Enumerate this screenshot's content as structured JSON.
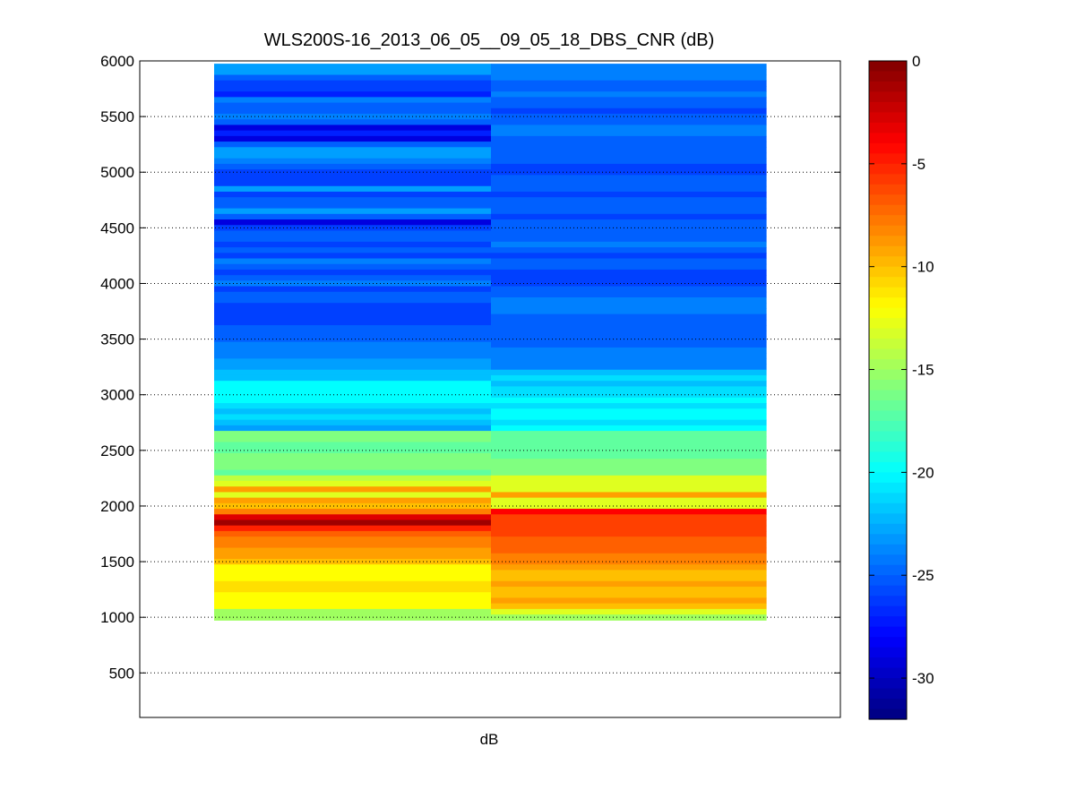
{
  "chart_data": {
    "type": "heatmap",
    "title": "WLS200S-16_2013_06_05__09_05_18_DBS_CNR (dB)",
    "xlabel": "dB",
    "ylabel": "",
    "ylim": [
      100,
      6000
    ],
    "yticks": [
      500,
      1000,
      1500,
      2000,
      2500,
      3000,
      3500,
      4000,
      4500,
      5000,
      5500,
      6000
    ],
    "grid": "horizontal dotted",
    "colorbar": {
      "colormap": "jet",
      "clim": [
        -32,
        0
      ],
      "ticks": [
        0,
        -5,
        -10,
        -15,
        -20,
        -25,
        -30
      ]
    },
    "row_step": 50,
    "rows_from_top_y": 5950,
    "columns": [
      {
        "values": [
          -23,
          -23,
          -25,
          -26,
          -26,
          -27,
          -24,
          -25,
          -25,
          -24,
          -25,
          -29,
          -27,
          -29,
          -25,
          -23,
          -23,
          -24,
          -25,
          -26,
          -26,
          -26,
          -23,
          -26,
          -25,
          -25,
          -23,
          -25,
          -29,
          -26,
          -25,
          -25,
          -26,
          -25,
          -26,
          -24,
          -25,
          -26,
          -25,
          -24,
          -26,
          -25,
          -25,
          -26,
          -26,
          -26,
          -26,
          -25,
          -25,
          -25,
          -24,
          -24,
          -24,
          -23,
          -23,
          -22,
          -22,
          -20,
          -20,
          -20,
          -20,
          -21,
          -22,
          -21,
          -22,
          -23,
          -16,
          -16,
          -17,
          -17,
          -16,
          -16,
          -16,
          -17,
          -14,
          -13,
          -9,
          -13,
          -9,
          -10,
          -8,
          -3,
          -1,
          -5,
          -7,
          -8,
          -8,
          -9,
          -9,
          -10,
          -12,
          -12,
          -12,
          -11,
          -11,
          -12,
          -12,
          -12,
          -15,
          -15
        ]
      },
      {
        "values": [
          -24,
          -24,
          -24,
          -25,
          -25,
          -24,
          -25,
          -25,
          -26,
          -25,
          -25,
          -24,
          -24,
          -25,
          -25,
          -25,
          -25,
          -25,
          -26,
          -26,
          -25,
          -25,
          -25,
          -26,
          -25,
          -25,
          -25,
          -26,
          -25,
          -25,
          -25,
          -25,
          -24,
          -25,
          -26,
          -25,
          -25,
          -26,
          -26,
          -26,
          -25,
          -25,
          -24,
          -24,
          -24,
          -25,
          -25,
          -25,
          -25,
          -25,
          -25,
          -24,
          -24,
          -24,
          -24,
          -22,
          -21,
          -22,
          -21,
          -21,
          -20,
          -21,
          -20,
          -20,
          -21,
          -20,
          -17,
          -17,
          -17,
          -17,
          -17,
          -16,
          -16,
          -16,
          -13,
          -13,
          -13,
          -9,
          -13,
          -13,
          -4,
          -6,
          -6,
          -6,
          -6,
          -7,
          -7,
          -7,
          -8,
          -8,
          -9,
          -10,
          -10,
          -9,
          -10,
          -10,
          -9,
          -10,
          -13,
          -15
        ]
      }
    ]
  }
}
